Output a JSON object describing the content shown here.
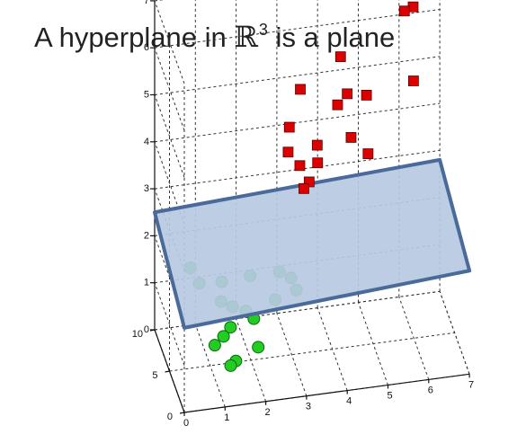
{
  "title": {
    "before": "A hyperplane in ",
    "symbol": "ℝ",
    "superscript": "3",
    "after": " is a plane"
  },
  "chart_data": {
    "type": "scatter",
    "projection": "3d",
    "title": "A hyperplane in ℝ3 is a plane",
    "xlabel": "",
    "ylabel": "",
    "zlabel": "",
    "xlim": [
      0,
      7
    ],
    "ylim": [
      0,
      10
    ],
    "zlim": [
      0,
      7
    ],
    "x_ticks": [
      "0",
      "1",
      "2",
      "3",
      "4",
      "5",
      "6",
      "7"
    ],
    "y_ticks": [
      "0",
      "5",
      "10"
    ],
    "z_ticks": [
      "0",
      "1",
      "2",
      "3",
      "4",
      "5",
      "6",
      "7"
    ],
    "grid": true,
    "series": [
      {
        "marker": "square",
        "color": "#dd0000",
        "points": [
          [
            4.2,
            5.0,
            6.2
          ],
          [
            4.4,
            5.5,
            5.3
          ],
          [
            4.2,
            6.0,
            5.0
          ],
          [
            3.3,
            6.2,
            5.4
          ],
          [
            4.8,
            4.5,
            5.4
          ],
          [
            6.2,
            8.0,
            6.5
          ],
          [
            6.0,
            8.2,
            6.4
          ],
          [
            6.1,
            6.5,
            5.2
          ],
          [
            3.0,
            5.8,
            4.7
          ],
          [
            4.4,
            4.2,
            4.6
          ],
          [
            3.7,
            6.0,
            4.2
          ],
          [
            3.0,
            6.2,
            4.1
          ],
          [
            3.2,
            5.0,
            4.0
          ],
          [
            3.6,
            4.5,
            4.1
          ],
          [
            4.7,
            2.6,
            4.5
          ],
          [
            3.4,
            4.6,
            3.7
          ],
          [
            3.3,
            5.0,
            3.5
          ]
        ]
      },
      {
        "marker": "circle",
        "color": "#22cc22",
        "points": [
          [
            1.9,
            3.9,
            2.0
          ],
          [
            1.7,
            2.6,
            1.5
          ],
          [
            2.7,
            5.0,
            1.8
          ],
          [
            3.0,
            5.2,
            1.6
          ],
          [
            3.1,
            4.8,
            1.4
          ],
          [
            2.6,
            5.1,
            1.2
          ],
          [
            1.5,
            8.0,
            1.2
          ],
          [
            0.8,
            9.0,
            1.4
          ],
          [
            1.0,
            8.7,
            1.1
          ],
          [
            1.4,
            6.8,
            1.0
          ],
          [
            2.1,
            5.4,
            0.8
          ],
          [
            1.7,
            7.1,
            0.8
          ],
          [
            1.6,
            6.4,
            0.5
          ],
          [
            1.2,
            6.2,
            0.2
          ],
          [
            1.6,
            4.6,
            0.1
          ],
          [
            2.2,
            5.3,
            0.2
          ],
          [
            1.4,
            3.6,
            0.2
          ],
          [
            1.4,
            6.0,
            0.4
          ]
        ]
      }
    ],
    "plane": {
      "color": "#b7c9e2",
      "edge_color": "#4a6a9a",
      "corners": [
        [
          0,
          10,
          2.5
        ],
        [
          7,
          10,
          2.8
        ],
        [
          7,
          0,
          2.2
        ],
        [
          0,
          0,
          1.8
        ]
      ]
    }
  }
}
